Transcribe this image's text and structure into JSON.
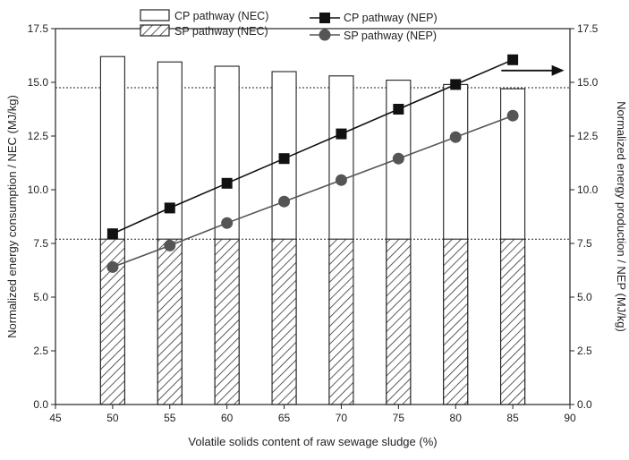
{
  "chart_data": {
    "type": "bar",
    "x": [
      50,
      55,
      60,
      65,
      70,
      75,
      80,
      85
    ],
    "xlim": [
      45,
      90
    ],
    "xticks": [
      45,
      50,
      55,
      60,
      65,
      70,
      75,
      80,
      85,
      90
    ],
    "xlabel": "Volatile solids content of raw sewage sludge (%)",
    "ylabel_left": "Normalized energy consumption / NEC (MJ/kg)",
    "ylabel_right": "Normalized energy production / NEP (MJ/kg)",
    "ylim": [
      0,
      17.5
    ],
    "yticks": [
      0.0,
      2.5,
      5.0,
      7.5,
      10.0,
      12.5,
      15.0,
      17.5
    ],
    "ytick_labels": [
      "0.0",
      "2.5",
      "5.0",
      "7.5",
      "10.0",
      "12.5",
      "15.0",
      "17.5"
    ],
    "reference_lines": [
      14.75,
      7.7
    ],
    "series": [
      {
        "name": "CP pathway (NEC)",
        "kind": "bar",
        "style": "open",
        "values": [
          16.2,
          15.95,
          15.75,
          15.5,
          15.3,
          15.1,
          14.9,
          14.7
        ]
      },
      {
        "name": "SP pathway (NEC)",
        "kind": "bar",
        "style": "hatched",
        "values": [
          7.7,
          7.7,
          7.7,
          7.7,
          7.7,
          7.7,
          7.7,
          7.7
        ]
      },
      {
        "name": "CP pathway (NEP)",
        "kind": "line",
        "marker": "square",
        "color": "#111111",
        "values": [
          7.95,
          9.15,
          10.3,
          11.45,
          12.6,
          13.75,
          14.9,
          16.05
        ]
      },
      {
        "name": "SP pathway (NEP)",
        "kind": "line",
        "marker": "circle",
        "color": "#555555",
        "values": [
          6.4,
          7.4,
          8.45,
          9.45,
          10.45,
          11.45,
          12.45,
          13.45
        ]
      }
    ],
    "annotations": [
      {
        "type": "arrow",
        "direction": "right",
        "from_x": 84,
        "to_x": 89.5,
        "y": 15.55
      }
    ]
  }
}
